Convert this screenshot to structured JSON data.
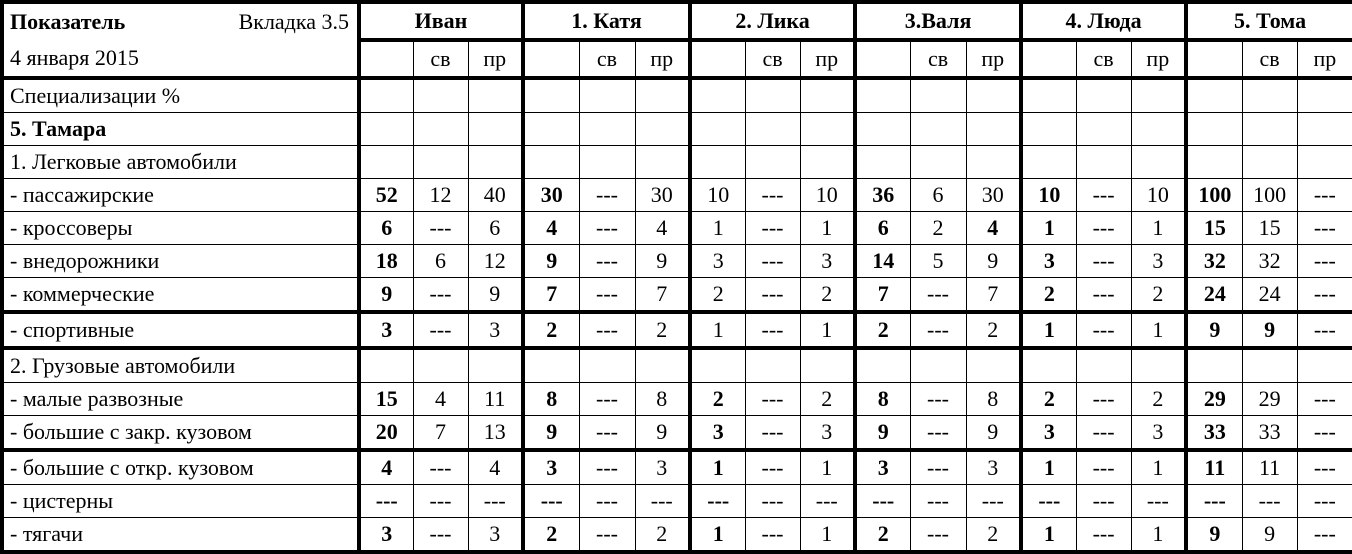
{
  "header": {
    "indicator_label": "Показатель",
    "tab_label": "Вкладка 3.5",
    "date": "4 января 2015",
    "groups": [
      "Иван",
      "1. Катя",
      "2. Лика",
      "3.Валя",
      "4. Люда",
      "5. Тома"
    ],
    "sub_sv": "св",
    "sub_pr": "пр"
  },
  "rows": [
    {
      "label": "Специализации %",
      "bold_label": false,
      "values": []
    },
    {
      "label": "5. Тамара",
      "bold_label": true,
      "values": []
    },
    {
      "label": "1. Легковые автомобили",
      "bold_label": false,
      "values": []
    },
    {
      "label": "- пассажирские",
      "values": [
        "52",
        "12",
        "40",
        "30",
        "---",
        "30",
        "10",
        "---",
        "10",
        "36",
        "6",
        "30",
        "10",
        "---",
        "10",
        "100",
        "100",
        "---"
      ],
      "bold": [
        0,
        3,
        9,
        12,
        15
      ]
    },
    {
      "label": "- кроссоверы",
      "values": [
        "6",
        "---",
        "6",
        "4",
        "---",
        "4",
        "1",
        "---",
        "1",
        "6",
        "2",
        "4",
        "1",
        "---",
        "1",
        "15",
        "15",
        "---"
      ],
      "bold": [
        0,
        3,
        9,
        11,
        12,
        15
      ]
    },
    {
      "label": "- внедорожники",
      "values": [
        "18",
        "6",
        "12",
        "9",
        "---",
        "9",
        "3",
        "---",
        "3",
        "14",
        "5",
        "9",
        "3",
        "---",
        "3",
        "32",
        "32",
        "---"
      ],
      "bold": [
        0,
        3,
        9,
        12,
        15
      ]
    },
    {
      "label": "- коммерческие",
      "values": [
        "9",
        "---",
        "9",
        "7",
        "---",
        "7",
        "2",
        "---",
        "2",
        "7",
        "---",
        "7",
        "2",
        "---",
        "2",
        "24",
        "24",
        "---"
      ],
      "bold": [
        0,
        3,
        9,
        12,
        15
      ]
    },
    {
      "label": "- спортивные",
      "values": [
        "3",
        "---",
        "3",
        "2",
        "---",
        "2",
        "1",
        "---",
        "1",
        "2",
        "---",
        "2",
        "1",
        "---",
        "1",
        "9",
        "9",
        "---"
      ],
      "bold": [
        0,
        3,
        9,
        12,
        15,
        16
      ]
    },
    {
      "label": "2. Грузовые автомобили",
      "values": []
    },
    {
      "label": "- малые развозные",
      "values": [
        "15",
        "4",
        "11",
        "8",
        "---",
        "8",
        "2",
        "---",
        "2",
        "8",
        "---",
        "8",
        "2",
        "---",
        "2",
        "29",
        "29",
        "---"
      ],
      "bold": [
        0,
        3,
        6,
        9,
        12,
        15
      ]
    },
    {
      "label": "- большие с закр. кузовом",
      "values": [
        "20",
        "7",
        "13",
        "9",
        "---",
        "9",
        "3",
        "---",
        "3",
        "9",
        "---",
        "9",
        "3",
        "---",
        "3",
        "33",
        "33",
        "---"
      ],
      "bold": [
        0,
        3,
        6,
        9,
        12,
        15
      ]
    },
    {
      "label": "- большие с откр. кузовом",
      "values": [
        "4",
        "---",
        "4",
        "3",
        "---",
        "3",
        "1",
        "---",
        "1",
        "3",
        "---",
        "3",
        "1",
        "---",
        "1",
        "11",
        "11",
        "---"
      ],
      "bold": [
        0,
        3,
        6,
        9,
        12,
        15
      ]
    },
    {
      "label": "- цистерны",
      "values": [
        "---",
        "---",
        "---",
        "---",
        "---",
        "---",
        "---",
        "---",
        "---",
        "---",
        "---",
        "---",
        "---",
        "---",
        "---",
        "---",
        "---",
        "---"
      ],
      "bold": [
        0,
        3,
        6,
        9,
        12,
        15
      ]
    },
    {
      "label": "- тягачи",
      "values": [
        "3",
        "---",
        "3",
        "2",
        "---",
        "2",
        "1",
        "---",
        "1",
        "2",
        "---",
        "2",
        "1",
        "---",
        "1",
        "9",
        "9",
        "---"
      ],
      "bold": [
        0,
        3,
        6,
        9,
        12,
        15
      ]
    }
  ]
}
